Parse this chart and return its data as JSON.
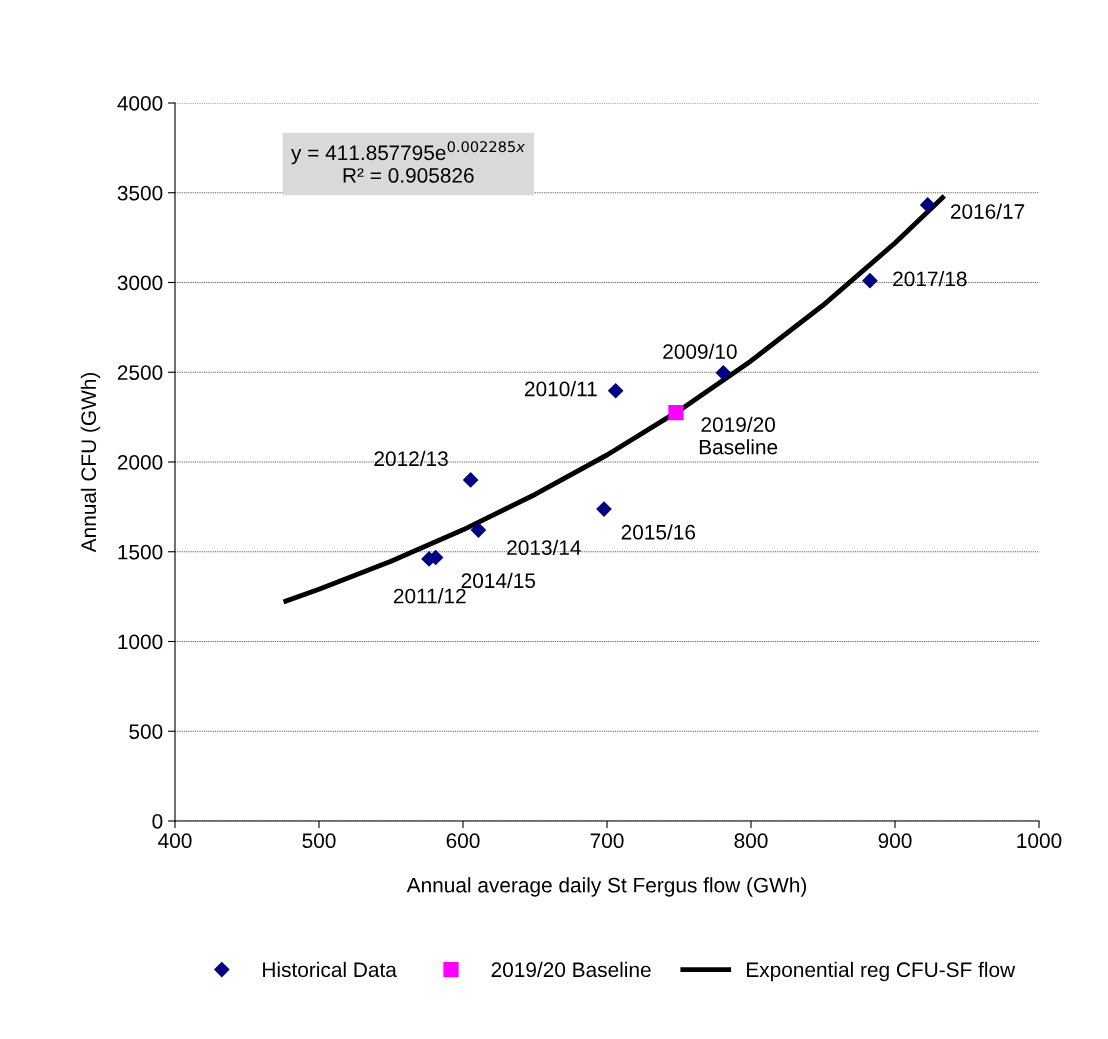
{
  "chart_data": {
    "type": "scatter",
    "xlabel": "Annual average daily St Fergus flow (GWh)",
    "ylabel": "Annual CFU (GWh)",
    "xlim": [
      400,
      1000
    ],
    "xticks": [
      400,
      500,
      600,
      700,
      800,
      900,
      1000
    ],
    "ylim": [
      0,
      4000
    ],
    "yticks": [
      0,
      500,
      1000,
      1500,
      2000,
      2500,
      3000,
      3500,
      4000
    ],
    "grid": "y",
    "legend": "bottom",
    "series": [
      {
        "name": "Historical Data",
        "marker": "diamond",
        "color": "#000080",
        "x": [
          922.7,
          882.6,
          780.8,
          706.0,
          605.3,
          610.7,
          697.9,
          576.4,
          581.0
        ],
        "values": [
          3432,
          3010,
          2497,
          2397,
          1900,
          1621,
          1738,
          1460,
          1468
        ]
      },
      {
        "name": "2019/20 Baseline",
        "marker": "square",
        "color": "#ff00ff",
        "x": [
          747.9
        ],
        "values": [
          2275
        ]
      },
      {
        "name": "Exponential reg CFU-SF flow",
        "type": "line",
        "marker": "none",
        "line_style": "solid",
        "color": "#000000",
        "x": [
          477,
          500,
          550,
          600,
          650,
          700,
          750,
          800,
          850,
          900,
          933
        ],
        "values": [
          1225,
          1291,
          1447,
          1622,
          1819,
          2039,
          2286,
          2563,
          2873,
          3220,
          3472
        ]
      }
    ],
    "annotations": [
      {
        "text": "2016/17",
        "x": 922.7,
        "y": 3432
      },
      {
        "text": "2017/18",
        "x": 882.6,
        "y": 3010
      },
      {
        "text": "2009/10",
        "x": 780.8,
        "y": 2497
      },
      {
        "text": "2010/11",
        "x": 706.0,
        "y": 2397
      },
      {
        "text": "2019/20\nBaseline",
        "x": 747.9,
        "y": 2275
      },
      {
        "text": "2012/13",
        "x": 605.3,
        "y": 1900
      },
      {
        "text": "2013/14",
        "x": 610.7,
        "y": 1621
      },
      {
        "text": "2015/16",
        "x": 697.9,
        "y": 1738
      },
      {
        "text": "2011/12",
        "x": 576.4,
        "y": 1460
      },
      {
        "text": "2014/15",
        "x": 581.0,
        "y": 1468
      },
      "y = 411.857795e$^{0.002285x}$\nR² = 0.905826"
    ]
  }
}
